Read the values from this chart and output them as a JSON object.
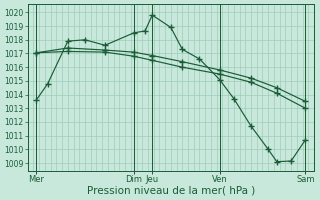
{
  "background_color": "#c8e8dc",
  "grid_color": "#a0ccbc",
  "line_color": "#1a5c35",
  "marker_color": "#1a5c35",
  "xlabel": "Pression niveau de la mer( hPa )",
  "xlabel_fontsize": 7.5,
  "yticks": [
    1009,
    1010,
    1011,
    1012,
    1013,
    1014,
    1015,
    1016,
    1017,
    1018,
    1019,
    1020
  ],
  "ylim": [
    1008.4,
    1020.6
  ],
  "xlim": [
    0.0,
    1.0
  ],
  "xtick_positions": [
    0.03,
    0.37,
    0.435,
    0.67,
    0.97
  ],
  "xtick_labels": [
    "Mer",
    "Dim",
    "Jeu",
    "Ven",
    "Sam"
  ],
  "vlines_x": [
    0.03,
    0.37,
    0.435,
    0.67,
    0.97
  ],
  "line1": {
    "x": [
      0.03,
      0.07,
      0.14,
      0.2,
      0.27,
      0.37,
      0.41,
      0.435,
      0.5,
      0.54,
      0.6,
      0.67,
      0.72,
      0.78,
      0.84,
      0.87,
      0.92,
      0.97
    ],
    "y": [
      1013.6,
      1014.8,
      1017.9,
      1018.0,
      1017.6,
      1018.5,
      1018.65,
      1019.8,
      1018.9,
      1017.3,
      1016.6,
      1015.1,
      1013.7,
      1011.7,
      1010.0,
      1009.1,
      1009.15,
      1010.7
    ]
  },
  "line2": {
    "x": [
      0.03,
      0.14,
      0.27,
      0.37,
      0.435,
      0.54,
      0.67,
      0.78,
      0.87,
      0.97
    ],
    "y": [
      1017.05,
      1017.4,
      1017.25,
      1017.1,
      1016.85,
      1016.4,
      1015.8,
      1015.2,
      1014.5,
      1013.5
    ]
  },
  "line3": {
    "x": [
      0.03,
      0.14,
      0.27,
      0.37,
      0.435,
      0.54,
      0.67,
      0.78,
      0.87,
      0.97
    ],
    "y": [
      1017.05,
      1017.15,
      1017.1,
      1016.8,
      1016.5,
      1016.0,
      1015.5,
      1014.9,
      1014.1,
      1013.0
    ]
  }
}
